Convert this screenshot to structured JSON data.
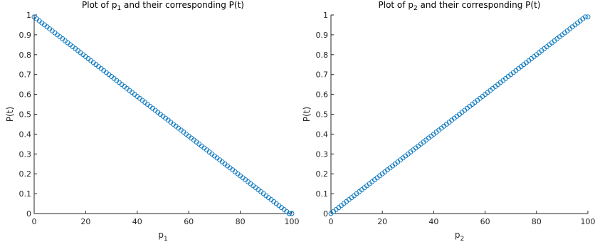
{
  "chart_data": [
    {
      "type": "scatter",
      "title": {
        "prefix": "Plot of p",
        "subscript": "1",
        "suffix": " and their corresponding P(t)"
      },
      "xlabel": {
        "base": "p",
        "subscript": "1"
      },
      "ylabel": "P(t)",
      "xlim": [
        0,
        100
      ],
      "ylim": [
        0,
        1
      ],
      "xticks": [
        0,
        20,
        40,
        60,
        80,
        100
      ],
      "xtick_labels": [
        "0",
        "20",
        "40",
        "60",
        "80",
        "100"
      ],
      "yticks": [
        0,
        0.1,
        0.2,
        0.3,
        0.4,
        0.5,
        0.6,
        0.7,
        0.8,
        0.9,
        1
      ],
      "ytick_labels": [
        "0",
        "0.1",
        "0.2",
        "0.3",
        "0.4",
        "0.5",
        "0.6",
        "0.7",
        "0.8",
        "0.9",
        "1"
      ],
      "marker": "circle-open",
      "marker_color": "#0072bd",
      "grid": false,
      "series": [
        {
          "x": [
            0,
            1,
            2,
            3,
            4,
            5,
            6,
            7,
            8,
            9,
            10,
            11,
            12,
            13,
            14,
            15,
            16,
            17,
            18,
            19,
            20,
            21,
            22,
            23,
            24,
            25,
            26,
            27,
            28,
            29,
            30,
            31,
            32,
            33,
            34,
            35,
            36,
            37,
            38,
            39,
            40,
            41,
            42,
            43,
            44,
            45,
            46,
            47,
            48,
            49,
            50,
            51,
            52,
            53,
            54,
            55,
            56,
            57,
            58,
            59,
            60,
            61,
            62,
            63,
            64,
            65,
            66,
            67,
            68,
            69,
            70,
            71,
            72,
            73,
            74,
            75,
            76,
            77,
            78,
            79,
            80,
            81,
            82,
            83,
            84,
            85,
            86,
            87,
            88,
            89,
            90,
            91,
            92,
            93,
            94,
            95,
            96,
            97,
            98,
            99,
            100
          ],
          "y": [
            0.99,
            0.98,
            0.97,
            0.96,
            0.95,
            0.94,
            0.93,
            0.92,
            0.91,
            0.9,
            0.89,
            0.88,
            0.87,
            0.86,
            0.85,
            0.84,
            0.83,
            0.82,
            0.81,
            0.8,
            0.79,
            0.78,
            0.77,
            0.76,
            0.75,
            0.74,
            0.73,
            0.72,
            0.71,
            0.7,
            0.69,
            0.68,
            0.67,
            0.66,
            0.65,
            0.64,
            0.63,
            0.62,
            0.61,
            0.6,
            0.59,
            0.58,
            0.57,
            0.56,
            0.55,
            0.54,
            0.53,
            0.52,
            0.51,
            0.5,
            0.49,
            0.48,
            0.47,
            0.46,
            0.45,
            0.44,
            0.43,
            0.42,
            0.41,
            0.4,
            0.39,
            0.38,
            0.37,
            0.36,
            0.35,
            0.34,
            0.33,
            0.32,
            0.31,
            0.3,
            0.29,
            0.28,
            0.27,
            0.26,
            0.25,
            0.24,
            0.23,
            0.22,
            0.21,
            0.2,
            0.19,
            0.18,
            0.17,
            0.16,
            0.15,
            0.14,
            0.13,
            0.12,
            0.11,
            0.1,
            0.09,
            0.08,
            0.07,
            0.06,
            0.05,
            0.04,
            0.03,
            0.02,
            0.01,
            0.0,
            0.0
          ]
        }
      ]
    },
    {
      "type": "scatter",
      "title": {
        "prefix": "Plot of p",
        "subscript": "2",
        "suffix": " and their corresponding P(t)"
      },
      "xlabel": {
        "base": "p",
        "subscript": "2"
      },
      "ylabel": "P(t)",
      "xlim": [
        0,
        100
      ],
      "ylim": [
        0,
        1
      ],
      "xticks": [
        0,
        20,
        40,
        60,
        80,
        100
      ],
      "xtick_labels": [
        "0",
        "20",
        "40",
        "60",
        "80",
        "100"
      ],
      "yticks": [
        0,
        0.1,
        0.2,
        0.3,
        0.4,
        0.5,
        0.6,
        0.7,
        0.8,
        0.9,
        1
      ],
      "ytick_labels": [
        "0",
        "0.1",
        "0.2",
        "0.3",
        "0.4",
        "0.5",
        "0.6",
        "0.7",
        "0.8",
        "0.9",
        "1"
      ],
      "marker": "circle-open",
      "marker_color": "#0072bd",
      "grid": false,
      "series": [
        {
          "x": [
            0,
            1,
            2,
            3,
            4,
            5,
            6,
            7,
            8,
            9,
            10,
            11,
            12,
            13,
            14,
            15,
            16,
            17,
            18,
            19,
            20,
            21,
            22,
            23,
            24,
            25,
            26,
            27,
            28,
            29,
            30,
            31,
            32,
            33,
            34,
            35,
            36,
            37,
            38,
            39,
            40,
            41,
            42,
            43,
            44,
            45,
            46,
            47,
            48,
            49,
            50,
            51,
            52,
            53,
            54,
            55,
            56,
            57,
            58,
            59,
            60,
            61,
            62,
            63,
            64,
            65,
            66,
            67,
            68,
            69,
            70,
            71,
            72,
            73,
            74,
            75,
            76,
            77,
            78,
            79,
            80,
            81,
            82,
            83,
            84,
            85,
            86,
            87,
            88,
            89,
            90,
            91,
            92,
            93,
            94,
            95,
            96,
            97,
            98,
            99,
            100
          ],
          "y": [
            0.0,
            0.01,
            0.02,
            0.03,
            0.04,
            0.05,
            0.06,
            0.07,
            0.08,
            0.09,
            0.1,
            0.11,
            0.12,
            0.13,
            0.14,
            0.15,
            0.16,
            0.17,
            0.18,
            0.19,
            0.2,
            0.21,
            0.22,
            0.23,
            0.24,
            0.25,
            0.26,
            0.27,
            0.28,
            0.29,
            0.3,
            0.31,
            0.32,
            0.33,
            0.34,
            0.35,
            0.36,
            0.37,
            0.38,
            0.39,
            0.4,
            0.41,
            0.42,
            0.43,
            0.44,
            0.45,
            0.46,
            0.47,
            0.48,
            0.49,
            0.5,
            0.51,
            0.52,
            0.53,
            0.54,
            0.55,
            0.56,
            0.57,
            0.58,
            0.59,
            0.6,
            0.61,
            0.62,
            0.63,
            0.64,
            0.65,
            0.66,
            0.67,
            0.68,
            0.69,
            0.7,
            0.71,
            0.72,
            0.73,
            0.74,
            0.75,
            0.76,
            0.77,
            0.78,
            0.79,
            0.8,
            0.81,
            0.82,
            0.83,
            0.84,
            0.85,
            0.86,
            0.87,
            0.88,
            0.89,
            0.9,
            0.91,
            0.92,
            0.93,
            0.94,
            0.95,
            0.96,
            0.97,
            0.98,
            0.99,
            0.99
          ]
        }
      ]
    }
  ]
}
